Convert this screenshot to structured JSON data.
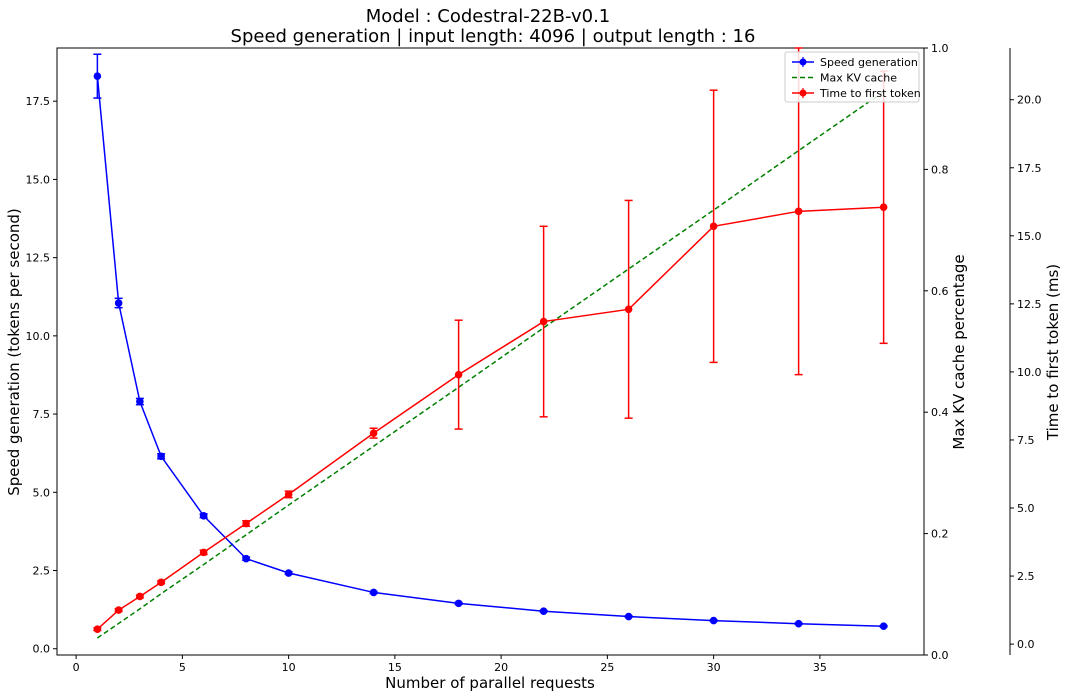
{
  "chart_data": {
    "type": "line",
    "title": "Model : Codestral-22B-v0.1",
    "subtitle": "Speed generation | input length: 4096 | output length : 16",
    "xlabel": "Number of parallel requests",
    "ylabel_left": "Speed generation (tokens per second)",
    "ylabel_right1": "Max KV cache percentage",
    "ylabel_right2": "Time to first token (ms)",
    "xlim": [
      -0.9,
      39.9
    ],
    "ylim_left": [
      -0.2,
      19.2
    ],
    "ylim_right1": [
      0,
      1
    ],
    "ylim_right2": [
      -0.4,
      21.9
    ],
    "x_ticks": [
      0,
      5,
      10,
      15,
      20,
      25,
      30,
      35
    ],
    "x_tick_labels": [
      "0",
      "5",
      "10",
      "15",
      "20",
      "25",
      "30",
      "35"
    ],
    "y_left_ticks": [
      0,
      2.5,
      5,
      7.5,
      10,
      12.5,
      15,
      17.5
    ],
    "y_left_tick_labels": [
      "0.0",
      "2.5",
      "5.0",
      "7.5",
      "10.0",
      "12.5",
      "15.0",
      "17.5"
    ],
    "y_right1_ticks": [
      0,
      0.2,
      0.4,
      0.6,
      0.8,
      1.0
    ],
    "y_right1_tick_labels": [
      "0.0",
      "0.2",
      "0.4",
      "0.6",
      "0.8",
      "1.0"
    ],
    "y_right2_ticks": [
      0,
      2.5,
      5,
      7.5,
      10,
      12.5,
      15,
      17.5,
      20
    ],
    "y_right2_tick_labels": [
      "0.0",
      "2.5",
      "5.0",
      "7.5",
      "10.0",
      "12.5",
      "15.0",
      "17.5",
      "20.0"
    ],
    "x": [
      1,
      2,
      3,
      4,
      6,
      8,
      10,
      14,
      18,
      22,
      26,
      30,
      34,
      38
    ],
    "legend_position": "top-right",
    "series": [
      {
        "name": "Speed generation",
        "axis": "left",
        "style": "solid-marker",
        "color": "#0000ff",
        "values": [
          18.3,
          11.05,
          7.9,
          6.15,
          4.25,
          2.88,
          2.42,
          1.8,
          1.45,
          1.2,
          1.03,
          0.9,
          0.8,
          0.72
        ],
        "errors": [
          0.7,
          0.15,
          0.1,
          0.08,
          0.06,
          0.05,
          0.04,
          0.03,
          0.03,
          0.02,
          0.02,
          0.02,
          0.02,
          0.02
        ]
      },
      {
        "name": "Max KV cache",
        "axis": "right1",
        "style": "dashed",
        "color": "#008000",
        "values": [
          0.028,
          0.052,
          0.076,
          0.101,
          0.149,
          0.198,
          0.247,
          0.344,
          0.441,
          0.539,
          0.636,
          0.733,
          0.831,
          0.928
        ],
        "errors": []
      },
      {
        "name": "Time to first token",
        "axis": "right2",
        "style": "solid-marker",
        "color": "#ff0000",
        "values": [
          0.55,
          1.25,
          1.75,
          2.27,
          3.37,
          4.43,
          5.5,
          7.75,
          9.9,
          11.85,
          12.3,
          15.35,
          15.9,
          16.05
        ],
        "errors": [
          0.05,
          0.05,
          0.05,
          0.05,
          0.08,
          0.1,
          0.12,
          0.18,
          2.0,
          3.5,
          4.0,
          5.0,
          6.0,
          5.0
        ]
      }
    ]
  }
}
